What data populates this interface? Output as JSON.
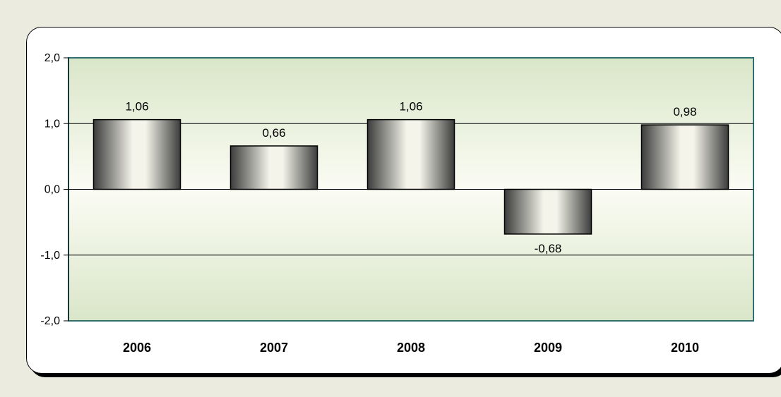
{
  "chart_data": {
    "type": "bar",
    "categories": [
      "2006",
      "2007",
      "2008",
      "2009",
      "2010"
    ],
    "values": [
      1.06,
      0.66,
      1.06,
      -0.68,
      0.98
    ],
    "value_labels": [
      "1,06",
      "0,66",
      "1,06",
      "-0,68",
      "0,98"
    ],
    "ylim": [
      -2.0,
      2.0
    ],
    "yticks": [
      2.0,
      1.0,
      0.0,
      -1.0,
      -2.0
    ],
    "ytick_labels": [
      "2,0",
      "1,0",
      "0,0",
      "-1,0",
      "-2,0"
    ],
    "grid": true,
    "legend": "none",
    "colors": {
      "page_background": "#ebebdf",
      "plot_border": "#2f6f6f",
      "plot_fill_top": "#d9e6c8",
      "plot_fill_mid": "#fbfcf4",
      "plot_fill_bottom": "#d9e6c8",
      "bar_dark": "#3c3c3c",
      "bar_light": "#f4f4ea"
    }
  }
}
